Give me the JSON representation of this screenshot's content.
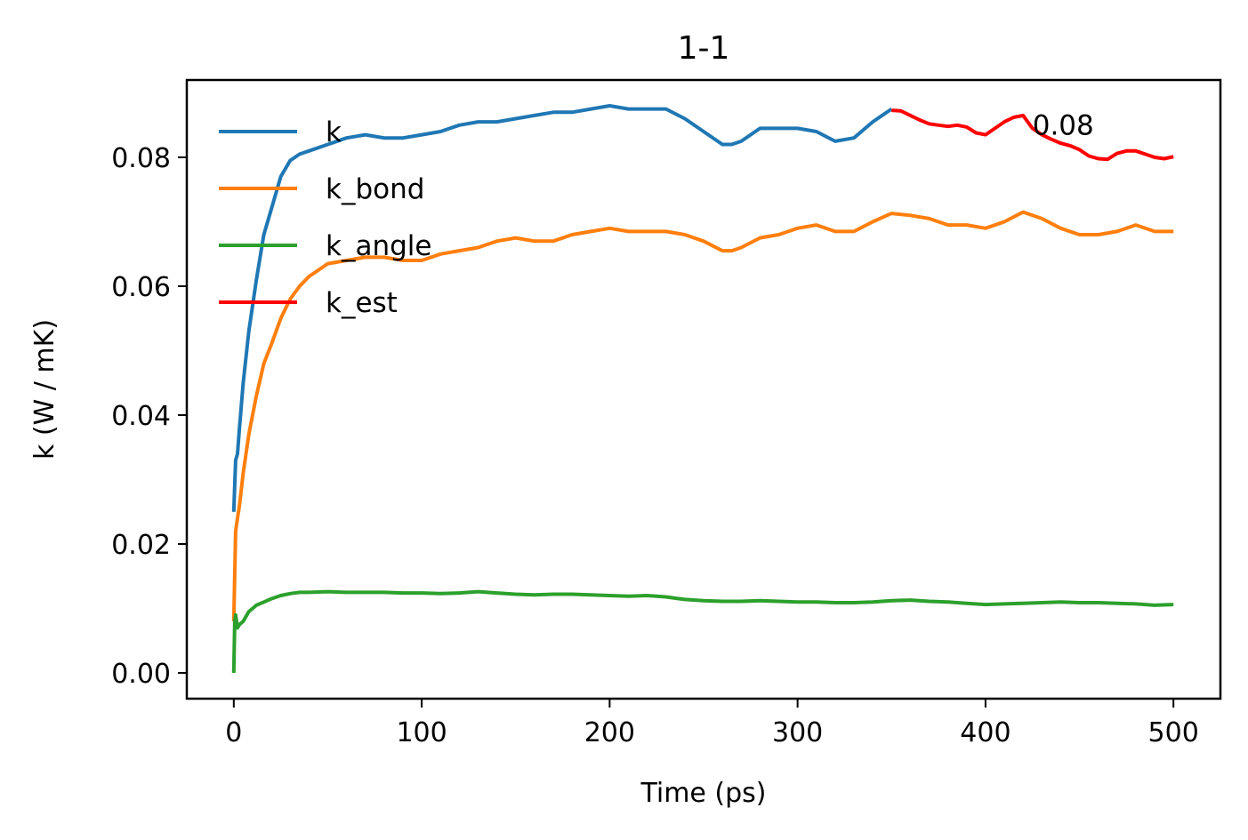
{
  "chart_data": {
    "type": "line",
    "title": "1-1",
    "xlabel": "Time (ps)",
    "ylabel": "k (W / mK)",
    "xlim": [
      -25,
      525
    ],
    "ylim": [
      -0.004,
      0.092
    ],
    "xticks": [
      0,
      100,
      200,
      300,
      400,
      500
    ],
    "yticks": [
      0.0,
      0.02,
      0.04,
      0.06,
      0.08
    ],
    "xtick_labels": [
      "0",
      "100",
      "200",
      "300",
      "400",
      "500"
    ],
    "ytick_labels": [
      "0.00",
      "0.02",
      "0.04",
      "0.06",
      "0.08"
    ],
    "grid": false,
    "legend_position": "top-left",
    "annotation": {
      "text": "0.08",
      "x": 425,
      "y": 0.0835
    },
    "series": [
      {
        "name": "k",
        "color": "#1f77b4",
        "x": [
          0,
          1,
          2,
          3,
          5,
          8,
          12,
          16,
          20,
          25,
          30,
          35,
          40,
          50,
          60,
          70,
          80,
          90,
          100,
          110,
          120,
          130,
          140,
          150,
          160,
          170,
          180,
          190,
          200,
          210,
          220,
          230,
          240,
          250,
          260,
          265,
          270,
          280,
          290,
          300,
          310,
          320,
          330,
          340,
          350
        ],
        "y": [
          0.025,
          0.033,
          0.034,
          0.038,
          0.045,
          0.053,
          0.061,
          0.068,
          0.072,
          0.077,
          0.0795,
          0.0805,
          0.081,
          0.082,
          0.083,
          0.0835,
          0.083,
          0.083,
          0.0835,
          0.084,
          0.085,
          0.0855,
          0.0855,
          0.086,
          0.0865,
          0.087,
          0.087,
          0.0875,
          0.088,
          0.0875,
          0.0875,
          0.0875,
          0.086,
          0.084,
          0.082,
          0.082,
          0.0825,
          0.0845,
          0.0845,
          0.0845,
          0.084,
          0.0825,
          0.083,
          0.0855,
          0.0875
        ]
      },
      {
        "name": "k_bond",
        "color": "#ff7f0e",
        "x": [
          0,
          1,
          2,
          3,
          5,
          8,
          12,
          16,
          20,
          25,
          30,
          35,
          40,
          50,
          60,
          70,
          80,
          90,
          100,
          110,
          120,
          130,
          140,
          150,
          160,
          170,
          180,
          190,
          200,
          210,
          220,
          230,
          240,
          250,
          260,
          265,
          270,
          280,
          290,
          300,
          310,
          320,
          330,
          340,
          350,
          360,
          370,
          380,
          390,
          400,
          410,
          420,
          430,
          440,
          450,
          460,
          470,
          480,
          490,
          500
        ],
        "y": [
          0.008,
          0.022,
          0.024,
          0.026,
          0.031,
          0.037,
          0.043,
          0.048,
          0.051,
          0.055,
          0.058,
          0.06,
          0.0615,
          0.0635,
          0.064,
          0.0645,
          0.0645,
          0.064,
          0.064,
          0.065,
          0.0655,
          0.066,
          0.067,
          0.0675,
          0.067,
          0.067,
          0.068,
          0.0685,
          0.069,
          0.0685,
          0.0685,
          0.0685,
          0.068,
          0.067,
          0.0655,
          0.0655,
          0.066,
          0.0675,
          0.068,
          0.069,
          0.0695,
          0.0685,
          0.0685,
          0.07,
          0.0713,
          0.071,
          0.0705,
          0.0695,
          0.0695,
          0.069,
          0.07,
          0.0715,
          0.0705,
          0.069,
          0.068,
          0.068,
          0.0685,
          0.0695,
          0.0685,
          0.0685
        ]
      },
      {
        "name": "k_angle",
        "color": "#2ca02c",
        "x": [
          0,
          0.5,
          1,
          2,
          3,
          5,
          8,
          12,
          16,
          20,
          25,
          30,
          35,
          40,
          50,
          60,
          70,
          80,
          90,
          100,
          110,
          120,
          130,
          140,
          150,
          160,
          170,
          180,
          190,
          200,
          210,
          220,
          230,
          240,
          250,
          260,
          270,
          280,
          290,
          300,
          310,
          320,
          330,
          340,
          350,
          360,
          370,
          380,
          390,
          400,
          410,
          420,
          430,
          440,
          450,
          460,
          470,
          480,
          490,
          500
        ],
        "y": [
          0.0,
          0.008,
          0.009,
          0.007,
          0.0075,
          0.008,
          0.0095,
          0.0105,
          0.011,
          0.0115,
          0.012,
          0.0123,
          0.0125,
          0.0125,
          0.0126,
          0.0125,
          0.0125,
          0.0125,
          0.0124,
          0.0124,
          0.0123,
          0.0124,
          0.0126,
          0.0124,
          0.0122,
          0.0121,
          0.0122,
          0.0122,
          0.0121,
          0.012,
          0.0119,
          0.012,
          0.0118,
          0.0114,
          0.0112,
          0.0111,
          0.0111,
          0.0112,
          0.0111,
          0.011,
          0.011,
          0.0109,
          0.0109,
          0.011,
          0.0112,
          0.0113,
          0.0111,
          0.011,
          0.0108,
          0.0106,
          0.0107,
          0.0108,
          0.0109,
          0.011,
          0.0109,
          0.0109,
          0.0108,
          0.0107,
          0.0105,
          0.0106
        ]
      },
      {
        "name": "k_est",
        "color": "#ff0000",
        "x": [
          350,
          355,
          360,
          365,
          370,
          375,
          380,
          385,
          390,
          395,
          400,
          405,
          410,
          415,
          420,
          425,
          430,
          435,
          440,
          445,
          450,
          455,
          460,
          465,
          470,
          475,
          480,
          485,
          490,
          495,
          500
        ],
        "y": [
          0.0873,
          0.0872,
          0.0865,
          0.0858,
          0.0852,
          0.085,
          0.0848,
          0.085,
          0.0847,
          0.0838,
          0.0835,
          0.0845,
          0.0855,
          0.0862,
          0.0865,
          0.0845,
          0.0835,
          0.0828,
          0.0822,
          0.0818,
          0.0812,
          0.0802,
          0.0798,
          0.0797,
          0.0806,
          0.081,
          0.081,
          0.0805,
          0.08,
          0.0798,
          0.0801
        ]
      }
    ]
  }
}
